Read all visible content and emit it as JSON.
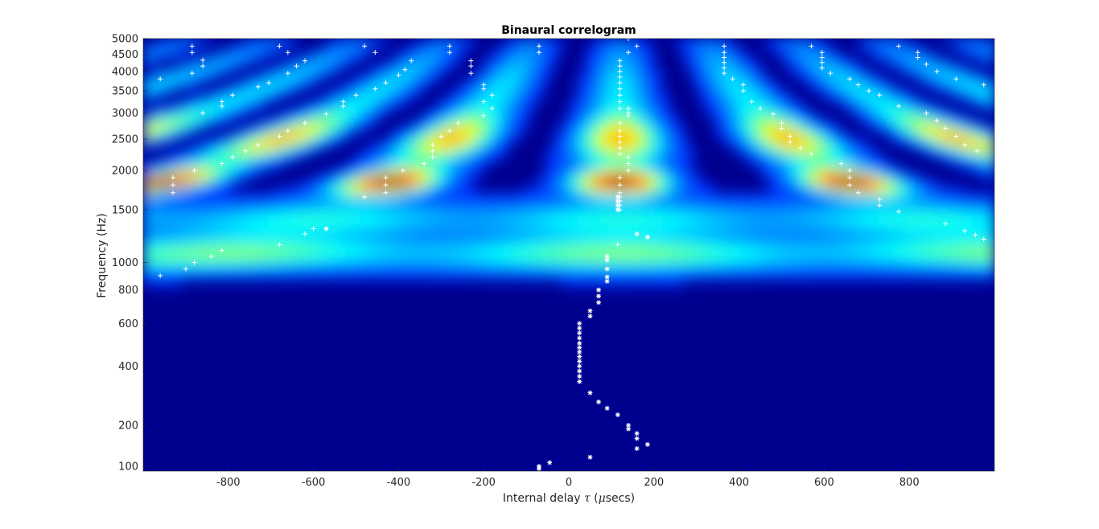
{
  "chart_data": {
    "type": "heatmap",
    "title": "Binaural correlogram",
    "xlabel_prefix": "Internal delay ",
    "xlabel_symbol": "τ",
    "xlabel_suffix": " (",
    "xlabel_mu": "μ",
    "xlabel_unit": "secs)",
    "ylabel": "Frequency (Hz)",
    "xlim": [
      -1000,
      1000
    ],
    "ylim": [
      90,
      5000
    ],
    "yscale": "log-like (ERB)",
    "xticks": [
      -800,
      -600,
      -400,
      -200,
      0,
      200,
      400,
      600,
      800
    ],
    "yticks": [
      100,
      200,
      400,
      600,
      800,
      1000,
      1500,
      2000,
      2500,
      3000,
      3500,
      4000,
      4500,
      5000
    ],
    "colormap": "jet",
    "marker_color": "#ffffff",
    "background_color": "#00008f",
    "heat_peaks": [
      {
        "x": -905,
        "y": 1850,
        "level": 1.0
      },
      {
        "x": -440,
        "y": 1850,
        "level": 1.0
      },
      {
        "x": 120,
        "y": 1850,
        "level": 1.0
      },
      {
        "x": 660,
        "y": 1850,
        "level": 1.0
      }
    ],
    "star_markers": [
      [
        -70,
        95
      ],
      [
        -70,
        100
      ],
      [
        -45,
        108
      ],
      [
        50,
        120
      ],
      [
        160,
        140
      ],
      [
        185,
        150
      ],
      [
        160,
        165
      ],
      [
        160,
        178
      ],
      [
        140,
        190
      ],
      [
        140,
        200
      ],
      [
        115,
        230
      ],
      [
        90,
        250
      ],
      [
        70,
        270
      ],
      [
        50,
        300
      ],
      [
        25,
        340
      ],
      [
        25,
        360
      ],
      [
        25,
        380
      ],
      [
        25,
        400
      ],
      [
        25,
        420
      ],
      [
        25,
        440
      ],
      [
        25,
        460
      ],
      [
        25,
        480
      ],
      [
        25,
        500
      ],
      [
        25,
        525
      ],
      [
        25,
        550
      ],
      [
        25,
        575
      ],
      [
        25,
        600
      ],
      [
        50,
        640
      ],
      [
        50,
        670
      ],
      [
        70,
        720
      ],
      [
        70,
        760
      ],
      [
        70,
        800
      ],
      [
        90,
        860
      ],
      [
        90,
        890
      ],
      [
        90,
        950
      ],
      [
        90,
        1020
      ],
      [
        90,
        1050
      ],
      [
        -570,
        1300
      ],
      [
        115,
        1500
      ],
      [
        115,
        1550
      ],
      [
        115,
        1600
      ],
      [
        115,
        1650
      ],
      [
        160,
        1250
      ],
      [
        185,
        1220
      ]
    ],
    "plus_markers": [
      [
        -960,
        3800
      ],
      [
        -885,
        4750
      ],
      [
        -885,
        4550
      ],
      [
        -885,
        3950
      ],
      [
        -860,
        4320
      ],
      [
        -860,
        4150
      ],
      [
        -860,
        3000
      ],
      [
        -815,
        3250
      ],
      [
        -815,
        3150
      ],
      [
        -790,
        3400
      ],
      [
        -730,
        3600
      ],
      [
        -705,
        3700
      ],
      [
        -680,
        4750
      ],
      [
        -660,
        4550
      ],
      [
        -640,
        4150
      ],
      [
        -660,
        3950
      ],
      [
        -620,
        4300
      ],
      [
        -620,
        2800
      ],
      [
        -680,
        2550
      ],
      [
        -660,
        2650
      ],
      [
        -730,
        2400
      ],
      [
        -760,
        2300
      ],
      [
        -790,
        2200
      ],
      [
        -815,
        2100
      ],
      [
        -880,
        2000
      ],
      [
        -930,
        1900
      ],
      [
        -930,
        1800
      ],
      [
        -930,
        1700
      ],
      [
        -960,
        900
      ],
      [
        -900,
        950
      ],
      [
        -880,
        1000
      ],
      [
        -840,
        1050
      ],
      [
        -815,
        1100
      ],
      [
        -680,
        1150
      ],
      [
        -620,
        1250
      ],
      [
        -600,
        1300
      ],
      [
        -530,
        3250
      ],
      [
        -530,
        3150
      ],
      [
        -570,
        2980
      ],
      [
        -500,
        3400
      ],
      [
        -480,
        4750
      ],
      [
        -455,
        4550
      ],
      [
        -455,
        3550
      ],
      [
        -430,
        3700
      ],
      [
        -400,
        3900
      ],
      [
        -385,
        4050
      ],
      [
        -370,
        4300
      ],
      [
        -430,
        1900
      ],
      [
        -430,
        1800
      ],
      [
        -430,
        1700
      ],
      [
        -480,
        1650
      ],
      [
        -390,
        2000
      ],
      [
        -340,
        2100
      ],
      [
        -320,
        2200
      ],
      [
        -320,
        2300
      ],
      [
        -320,
        2400
      ],
      [
        -300,
        2550
      ],
      [
        -280,
        2650
      ],
      [
        -260,
        2800
      ],
      [
        -280,
        4750
      ],
      [
        -280,
        4550
      ],
      [
        -230,
        4300
      ],
      [
        -230,
        4150
      ],
      [
        -230,
        3950
      ],
      [
        -200,
        3650
      ],
      [
        -200,
        3550
      ],
      [
        -200,
        3250
      ],
      [
        -200,
        2950
      ],
      [
        -180,
        3400
      ],
      [
        -180,
        3100
      ],
      [
        -70,
        4750
      ],
      [
        -70,
        4550
      ],
      [
        120,
        4300
      ],
      [
        120,
        4150
      ],
      [
        120,
        4000
      ],
      [
        120,
        3850
      ],
      [
        120,
        3700
      ],
      [
        120,
        3550
      ],
      [
        120,
        3400
      ],
      [
        120,
        3250
      ],
      [
        120,
        3100
      ],
      [
        140,
        3100
      ],
      [
        140,
        3000
      ],
      [
        140,
        2950
      ],
      [
        140,
        4550
      ],
      [
        160,
        4750
      ],
      [
        140,
        5000
      ],
      [
        120,
        2800
      ],
      [
        120,
        2650
      ],
      [
        120,
        2550
      ],
      [
        120,
        2450
      ],
      [
        120,
        2350
      ],
      [
        120,
        2250
      ],
      [
        140,
        2200
      ],
      [
        140,
        2100
      ],
      [
        140,
        2000
      ],
      [
        120,
        1900
      ],
      [
        120,
        1800
      ],
      [
        120,
        1700
      ],
      [
        120,
        1650
      ],
      [
        120,
        1600
      ],
      [
        120,
        1550
      ],
      [
        120,
        1500
      ],
      [
        115,
        1150
      ],
      [
        365,
        4750
      ],
      [
        365,
        4550
      ],
      [
        365,
        4400
      ],
      [
        365,
        4250
      ],
      [
        365,
        4100
      ],
      [
        365,
        3950
      ],
      [
        385,
        3800
      ],
      [
        410,
        3650
      ],
      [
        410,
        3500
      ],
      [
        430,
        3250
      ],
      [
        450,
        3100
      ],
      [
        480,
        2980
      ],
      [
        500,
        2800
      ],
      [
        500,
        2700
      ],
      [
        520,
        2550
      ],
      [
        520,
        2450
      ],
      [
        545,
        2350
      ],
      [
        570,
        2250
      ],
      [
        570,
        4750
      ],
      [
        595,
        4550
      ],
      [
        595,
        4400
      ],
      [
        595,
        4250
      ],
      [
        595,
        4100
      ],
      [
        615,
        3950
      ],
      [
        660,
        3800
      ],
      [
        680,
        3650
      ],
      [
        705,
        3500
      ],
      [
        730,
        3400
      ],
      [
        775,
        3150
      ],
      [
        640,
        2100
      ],
      [
        660,
        2000
      ],
      [
        660,
        1900
      ],
      [
        660,
        1800
      ],
      [
        680,
        1700
      ],
      [
        730,
        1620
      ],
      [
        730,
        1550
      ],
      [
        775,
        1480
      ],
      [
        775,
        4750
      ],
      [
        820,
        4550
      ],
      [
        820,
        4400
      ],
      [
        840,
        4200
      ],
      [
        865,
        4000
      ],
      [
        840,
        3000
      ],
      [
        865,
        2850
      ],
      [
        885,
        2700
      ],
      [
        910,
        2550
      ],
      [
        930,
        2400
      ],
      [
        960,
        2300
      ],
      [
        910,
        3800
      ],
      [
        975,
        3650
      ],
      [
        885,
        1350
      ],
      [
        930,
        1280
      ],
      [
        955,
        1240
      ],
      [
        975,
        1200
      ]
    ]
  }
}
